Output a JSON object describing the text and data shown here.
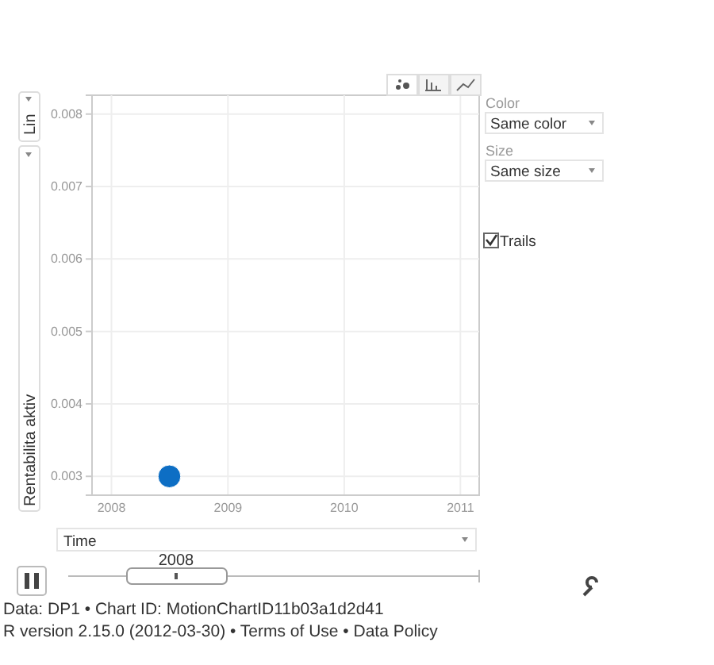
{
  "chart_data": {
    "type": "scatter",
    "xlabel": "Time",
    "ylabel": "Rentabilita aktiv",
    "x": [
      "2008-07"
    ],
    "series": [
      {
        "color": "#0d6ec4",
        "values": [
          0.003
        ]
      }
    ],
    "xlim": [
      "2007-11",
      "2011-03"
    ],
    "xticks": [
      {
        "value": "2008",
        "label": "2008"
      },
      {
        "value": "2009",
        "label": "2009"
      },
      {
        "value": "2010",
        "label": "2010"
      },
      {
        "value": "2011",
        "label": "2011"
      }
    ],
    "ylim": [
      0.00274,
      0.00826
    ],
    "yticks": [
      0.003,
      0.004,
      0.005,
      0.006,
      0.007,
      0.008
    ],
    "grid": true,
    "marker": "circle",
    "annotations": [
      "Lin",
      "Color",
      "Same color",
      "Size",
      "Same size",
      "Trails",
      "2008",
      "Data: DP1 • Chart ID: MotionChartID11b03a1d2d41",
      "R version 2.15.0 (2012-03-30) • Terms of Use • Data Policy"
    ]
  }
}
